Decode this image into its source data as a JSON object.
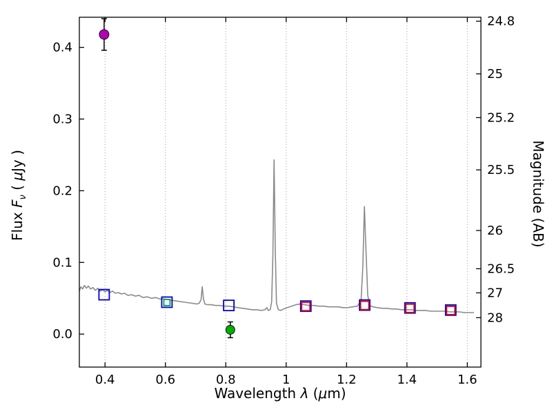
{
  "chart_data": {
    "type": "line",
    "title": "",
    "xlabel": "Wavelength λ (μm)",
    "xlabel_parts": {
      "word": "Wavelength ",
      "lambda": "λ",
      "open": " (",
      "mu": "μ",
      "close": "m)"
    },
    "ylabel_left": "Flux Fν ( μJy )",
    "ylabel_left_parts": {
      "flux": "Flux ",
      "F": "F",
      "nu": "ν",
      "open": " ( ",
      "mu": "μ",
      "close": "Jy )"
    },
    "ylabel_right": "Magnitude (AB)",
    "x_range": [
      0.315,
      1.645
    ],
    "y_range_flux": [
      -0.046,
      0.442
    ],
    "x_ticks": [
      0.4,
      0.6,
      0.8,
      1.0,
      1.2,
      1.4,
      1.6
    ],
    "x_tick_labels": [
      "0.4",
      "0.6",
      "0.8",
      "1",
      "1.2",
      "1.4",
      "1.6"
    ],
    "y_ticks_flux": [
      0.0,
      0.1,
      0.2,
      0.3,
      0.4
    ],
    "y_tick_labels_flux": [
      "0.0",
      "0.1",
      "0.2",
      "0.3",
      "0.4"
    ],
    "y_ticks_mag": [
      24.8,
      25,
      25.2,
      25.5,
      26,
      26.5,
      27,
      28
    ],
    "y_tick_labels_mag": [
      "24.8",
      "25",
      "25.2",
      "25.5",
      "26",
      "26.5",
      "27",
      "28"
    ],
    "mag_flux_zeropoint_ab": 23.9,
    "grid": {
      "vertical_dotted_at_x_ticks": true,
      "horizontal": false
    },
    "colors": {
      "spectrum": "#8a8a8a",
      "model_squares": "#0000d0",
      "observed_squares_red": "#e60000",
      "observed_square_green": "#00a550",
      "circle_magenta": "#b300b3",
      "circle_green": "#00ad00",
      "errorbar": "#000000",
      "grid": "#9a9a9a"
    },
    "series": [
      {
        "name": "model-spectrum",
        "type": "line",
        "color": "#8a8a8a",
        "width": 1.6,
        "points": [
          [
            0.315,
            0.06
          ],
          [
            0.32,
            0.066
          ],
          [
            0.326,
            0.063
          ],
          [
            0.332,
            0.068
          ],
          [
            0.338,
            0.064
          ],
          [
            0.345,
            0.067
          ],
          [
            0.352,
            0.063
          ],
          [
            0.36,
            0.065
          ],
          [
            0.368,
            0.061
          ],
          [
            0.376,
            0.064
          ],
          [
            0.384,
            0.06
          ],
          [
            0.392,
            0.062
          ],
          [
            0.4,
            0.059
          ],
          [
            0.408,
            0.061
          ],
          [
            0.416,
            0.058
          ],
          [
            0.425,
            0.06
          ],
          [
            0.434,
            0.057
          ],
          [
            0.444,
            0.058
          ],
          [
            0.454,
            0.056
          ],
          [
            0.465,
            0.057
          ],
          [
            0.476,
            0.054
          ],
          [
            0.488,
            0.055
          ],
          [
            0.5,
            0.053
          ],
          [
            0.513,
            0.054
          ],
          [
            0.526,
            0.051
          ],
          [
            0.54,
            0.052
          ],
          [
            0.554,
            0.05
          ],
          [
            0.568,
            0.051
          ],
          [
            0.582,
            0.049
          ],
          [
            0.596,
            0.049
          ],
          [
            0.61,
            0.048
          ],
          [
            0.625,
            0.047
          ],
          [
            0.64,
            0.046
          ],
          [
            0.656,
            0.045
          ],
          [
            0.672,
            0.044
          ],
          [
            0.688,
            0.043
          ],
          [
            0.704,
            0.042
          ],
          [
            0.712,
            0.043
          ],
          [
            0.718,
            0.048
          ],
          [
            0.722,
            0.066
          ],
          [
            0.726,
            0.049
          ],
          [
            0.731,
            0.042
          ],
          [
            0.74,
            0.041
          ],
          [
            0.752,
            0.041
          ],
          [
            0.766,
            0.04
          ],
          [
            0.78,
            0.04
          ],
          [
            0.795,
            0.039
          ],
          [
            0.81,
            0.039
          ],
          [
            0.825,
            0.038
          ],
          [
            0.84,
            0.037
          ],
          [
            0.856,
            0.036
          ],
          [
            0.872,
            0.035
          ],
          [
            0.888,
            0.034
          ],
          [
            0.904,
            0.034
          ],
          [
            0.918,
            0.033
          ],
          [
            0.93,
            0.034
          ],
          [
            0.936,
            0.037
          ],
          [
            0.941,
            0.033
          ],
          [
            0.947,
            0.034
          ],
          [
            0.952,
            0.045
          ],
          [
            0.956,
            0.11
          ],
          [
            0.96,
            0.243
          ],
          [
            0.964,
            0.115
          ],
          [
            0.968,
            0.043
          ],
          [
            0.974,
            0.034
          ],
          [
            0.982,
            0.033
          ],
          [
            0.992,
            0.035
          ],
          [
            1.004,
            0.037
          ],
          [
            1.018,
            0.039
          ],
          [
            1.032,
            0.041
          ],
          [
            1.046,
            0.042
          ],
          [
            1.06,
            0.041
          ],
          [
            1.076,
            0.04
          ],
          [
            1.092,
            0.04
          ],
          [
            1.108,
            0.039
          ],
          [
            1.124,
            0.039
          ],
          [
            1.14,
            0.038
          ],
          [
            1.156,
            0.038
          ],
          [
            1.172,
            0.038
          ],
          [
            1.188,
            0.037
          ],
          [
            1.204,
            0.037
          ],
          [
            1.22,
            0.038
          ],
          [
            1.236,
            0.039
          ],
          [
            1.248,
            0.047
          ],
          [
            1.254,
            0.095
          ],
          [
            1.259,
            0.178
          ],
          [
            1.264,
            0.12
          ],
          [
            1.27,
            0.055
          ],
          [
            1.276,
            0.04
          ],
          [
            1.288,
            0.038
          ],
          [
            1.302,
            0.037
          ],
          [
            1.318,
            0.036
          ],
          [
            1.334,
            0.036
          ],
          [
            1.35,
            0.035
          ],
          [
            1.366,
            0.035
          ],
          [
            1.382,
            0.034
          ],
          [
            1.398,
            0.034
          ],
          [
            1.414,
            0.034
          ],
          [
            1.43,
            0.033
          ],
          [
            1.446,
            0.033
          ],
          [
            1.462,
            0.033
          ],
          [
            1.478,
            0.032
          ],
          [
            1.494,
            0.032
          ],
          [
            1.51,
            0.032
          ],
          [
            1.526,
            0.032
          ],
          [
            1.542,
            0.031
          ],
          [
            1.558,
            0.031
          ],
          [
            1.574,
            0.031
          ],
          [
            1.59,
            0.03
          ],
          [
            1.606,
            0.03
          ],
          [
            1.622,
            0.03
          ]
        ]
      },
      {
        "name": "model-photometry-blue-squares",
        "type": "scatter",
        "marker": "open-square",
        "color": "#0000d0",
        "size": 15,
        "points": [
          [
            0.397,
            0.055
          ],
          [
            0.605,
            0.0445
          ],
          [
            0.81,
            0.04
          ],
          [
            1.065,
            0.039
          ],
          [
            1.26,
            0.0405
          ],
          [
            1.41,
            0.0365
          ],
          [
            1.545,
            0.0335
          ]
        ]
      },
      {
        "name": "observed-photometry-red-squares",
        "type": "scatter",
        "marker": "open-square",
        "color": "#e60000",
        "size": 12,
        "points": [
          [
            1.065,
            0.0385
          ],
          [
            1.26,
            0.04
          ],
          [
            1.41,
            0.036
          ],
          [
            1.545,
            0.033
          ]
        ]
      },
      {
        "name": "observed-photometry-green-square",
        "type": "scatter",
        "marker": "open-square",
        "color": "#00a550",
        "size": 9,
        "points": [
          [
            0.605,
            0.044
          ]
        ]
      },
      {
        "name": "observed-point-magenta-circle",
        "type": "scatter",
        "marker": "filled-circle",
        "color": "#b300b3",
        "size": 14,
        "points": [
          [
            0.397,
            0.418
          ]
        ],
        "yerr": [
          0.022
        ]
      },
      {
        "name": "observed-point-green-circle",
        "type": "scatter",
        "marker": "filled-circle",
        "color": "#00ad00",
        "size": 13,
        "points": [
          [
            0.815,
            0.006
          ]
        ],
        "yerr": [
          0.011
        ]
      }
    ]
  }
}
